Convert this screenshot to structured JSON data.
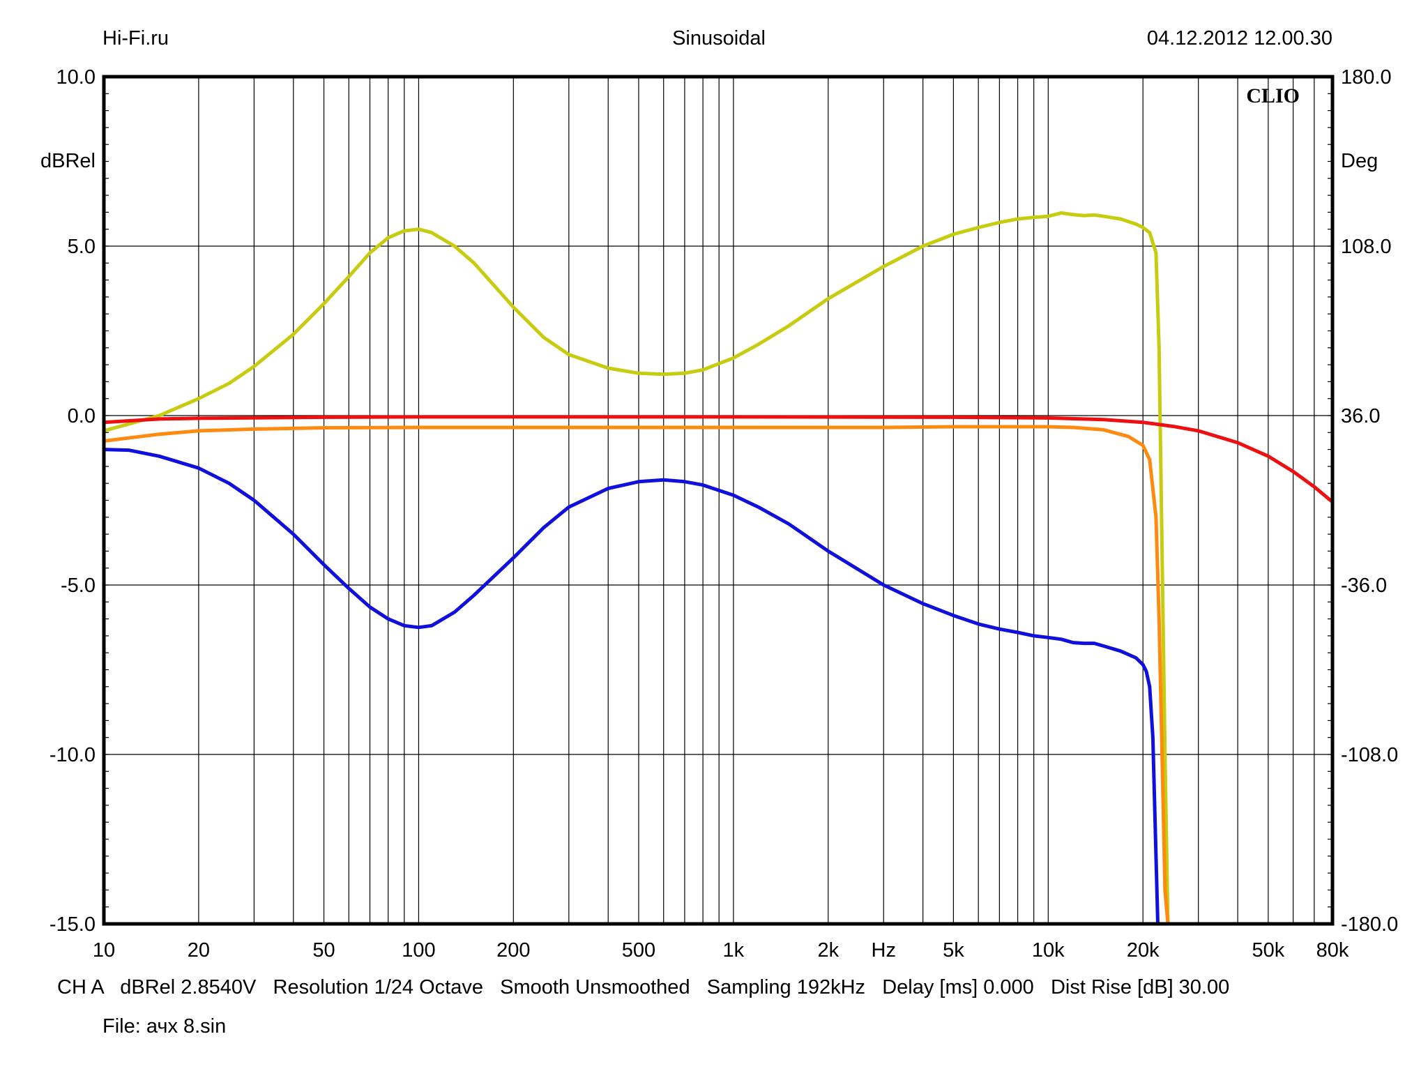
{
  "header": {
    "left": "Hi-Fi.ru",
    "center": "Sinusoidal",
    "right": "04.12.2012 12.00.30"
  },
  "logo": "CLIO",
  "footer": {
    "line1": "CH A   dBRel 2.8540V   Resolution 1/24 Octave   Smooth Unsmoothed   Sampling 192kHz   Delay [ms] 0.000   Dist Rise [dB] 30.00",
    "line2": "File: ачх 8.sin"
  },
  "chart_data": {
    "type": "line",
    "xscale": "log",
    "xlim": [
      10,
      80000
    ],
    "ylim": [
      -15,
      10
    ],
    "y2lim": [
      -180,
      180
    ],
    "ylabel": "dBRel",
    "y2label": "Deg",
    "xunit_label": "Hz",
    "grid": true,
    "x_ticks": [
      {
        "v": 10,
        "label": "10"
      },
      {
        "v": 20,
        "label": "20"
      },
      {
        "v": 50,
        "label": "50"
      },
      {
        "v": 100,
        "label": "100"
      },
      {
        "v": 200,
        "label": "200"
      },
      {
        "v": 500,
        "label": "500"
      },
      {
        "v": 1000,
        "label": "1k"
      },
      {
        "v": 2000,
        "label": "2k"
      },
      {
        "v": 5000,
        "label": "5k"
      },
      {
        "v": 10000,
        "label": "10k"
      },
      {
        "v": 20000,
        "label": "20k"
      },
      {
        "v": 50000,
        "label": "50k"
      },
      {
        "v": 80000,
        "label": "80k"
      }
    ],
    "y_ticks": [
      {
        "v": 10,
        "label": "10.0"
      },
      {
        "v": 5,
        "label": "5.0"
      },
      {
        "v": 0,
        "label": "0.0"
      },
      {
        "v": -5,
        "label": "-5.0"
      },
      {
        "v": -10,
        "label": "-10.0"
      },
      {
        "v": -15,
        "label": "-15.0"
      }
    ],
    "y2_ticks": [
      {
        "v": 180,
        "label": "180.0"
      },
      {
        "v": 108,
        "label": "108.0"
      },
      {
        "v": 36,
        "label": "36.0"
      },
      {
        "v": -36,
        "label": "-36.0"
      },
      {
        "v": -108,
        "label": "-108.0"
      },
      {
        "v": -180,
        "label": "-180.0"
      }
    ],
    "series": [
      {
        "color": "#e8e800",
        "stroke": "#c8cc10",
        "points": [
          [
            10,
            -0.45
          ],
          [
            12,
            -0.25
          ],
          [
            15,
            0.0
          ],
          [
            20,
            0.5
          ],
          [
            25,
            0.95
          ],
          [
            30,
            1.45
          ],
          [
            40,
            2.4
          ],
          [
            50,
            3.3
          ],
          [
            60,
            4.1
          ],
          [
            70,
            4.8
          ],
          [
            80,
            5.25
          ],
          [
            90,
            5.45
          ],
          [
            100,
            5.5
          ],
          [
            110,
            5.4
          ],
          [
            130,
            5.0
          ],
          [
            150,
            4.5
          ],
          [
            200,
            3.2
          ],
          [
            250,
            2.3
          ],
          [
            300,
            1.8
          ],
          [
            400,
            1.4
          ],
          [
            500,
            1.25
          ],
          [
            600,
            1.22
          ],
          [
            700,
            1.25
          ],
          [
            800,
            1.35
          ],
          [
            1000,
            1.7
          ],
          [
            1200,
            2.1
          ],
          [
            1500,
            2.65
          ],
          [
            2000,
            3.45
          ],
          [
            3000,
            4.4
          ],
          [
            4000,
            5.0
          ],
          [
            5000,
            5.35
          ],
          [
            6000,
            5.55
          ],
          [
            7000,
            5.7
          ],
          [
            8000,
            5.8
          ],
          [
            9000,
            5.85
          ],
          [
            10000,
            5.88
          ],
          [
            11000,
            5.98
          ],
          [
            12000,
            5.93
          ],
          [
            13000,
            5.9
          ],
          [
            14000,
            5.92
          ],
          [
            15000,
            5.88
          ],
          [
            17000,
            5.8
          ],
          [
            19000,
            5.65
          ],
          [
            20000,
            5.55
          ],
          [
            21000,
            5.4
          ],
          [
            22000,
            4.8
          ],
          [
            22500,
            2.0
          ],
          [
            23000,
            -4.0
          ],
          [
            23500,
            -10.0
          ],
          [
            24000,
            -15.0
          ]
        ]
      },
      {
        "color": "#ee0000",
        "stroke": "#ee1010",
        "points": [
          [
            10,
            -0.2
          ],
          [
            15,
            -0.1
          ],
          [
            20,
            -0.08
          ],
          [
            50,
            -0.05
          ],
          [
            100,
            -0.04
          ],
          [
            1000,
            -0.04
          ],
          [
            5000,
            -0.05
          ],
          [
            10000,
            -0.07
          ],
          [
            15000,
            -0.12
          ],
          [
            20000,
            -0.2
          ],
          [
            25000,
            -0.32
          ],
          [
            30000,
            -0.45
          ],
          [
            40000,
            -0.8
          ],
          [
            50000,
            -1.2
          ],
          [
            60000,
            -1.65
          ],
          [
            70000,
            -2.1
          ],
          [
            80000,
            -2.55
          ]
        ]
      },
      {
        "color": "#ff8000",
        "stroke": "#ff8a10",
        "points": [
          [
            10,
            -0.75
          ],
          [
            15,
            -0.55
          ],
          [
            20,
            -0.45
          ],
          [
            30,
            -0.4
          ],
          [
            50,
            -0.36
          ],
          [
            100,
            -0.35
          ],
          [
            1000,
            -0.35
          ],
          [
            3000,
            -0.35
          ],
          [
            5000,
            -0.33
          ],
          [
            10000,
            -0.33
          ],
          [
            12000,
            -0.35
          ],
          [
            15000,
            -0.42
          ],
          [
            18000,
            -0.62
          ],
          [
            20000,
            -0.88
          ],
          [
            21000,
            -1.3
          ],
          [
            22000,
            -3.0
          ],
          [
            22500,
            -6.0
          ],
          [
            23000,
            -10.0
          ],
          [
            23500,
            -14.0
          ],
          [
            24000,
            -15.0
          ]
        ]
      },
      {
        "color": "#0000cc",
        "stroke": "#1010dd",
        "points": [
          [
            10,
            -1.0
          ],
          [
            12,
            -1.02
          ],
          [
            15,
            -1.2
          ],
          [
            20,
            -1.55
          ],
          [
            25,
            -2.0
          ],
          [
            30,
            -2.5
          ],
          [
            40,
            -3.5
          ],
          [
            50,
            -4.4
          ],
          [
            60,
            -5.1
          ],
          [
            70,
            -5.65
          ],
          [
            80,
            -6.0
          ],
          [
            90,
            -6.2
          ],
          [
            100,
            -6.25
          ],
          [
            110,
            -6.2
          ],
          [
            130,
            -5.8
          ],
          [
            150,
            -5.3
          ],
          [
            200,
            -4.2
          ],
          [
            250,
            -3.3
          ],
          [
            300,
            -2.7
          ],
          [
            400,
            -2.15
          ],
          [
            500,
            -1.95
          ],
          [
            600,
            -1.9
          ],
          [
            700,
            -1.95
          ],
          [
            800,
            -2.05
          ],
          [
            1000,
            -2.35
          ],
          [
            1200,
            -2.7
          ],
          [
            1500,
            -3.2
          ],
          [
            2000,
            -4.0
          ],
          [
            3000,
            -5.0
          ],
          [
            4000,
            -5.55
          ],
          [
            5000,
            -5.9
          ],
          [
            6000,
            -6.15
          ],
          [
            7000,
            -6.3
          ],
          [
            8000,
            -6.4
          ],
          [
            9000,
            -6.5
          ],
          [
            10000,
            -6.55
          ],
          [
            11000,
            -6.6
          ],
          [
            12000,
            -6.7
          ],
          [
            13000,
            -6.72
          ],
          [
            14000,
            -6.72
          ],
          [
            15000,
            -6.8
          ],
          [
            17000,
            -6.95
          ],
          [
            19000,
            -7.15
          ],
          [
            20000,
            -7.35
          ],
          [
            20500,
            -7.55
          ],
          [
            21000,
            -8.0
          ],
          [
            21500,
            -9.5
          ],
          [
            22000,
            -13.0
          ],
          [
            22300,
            -15.0
          ]
        ]
      }
    ]
  }
}
